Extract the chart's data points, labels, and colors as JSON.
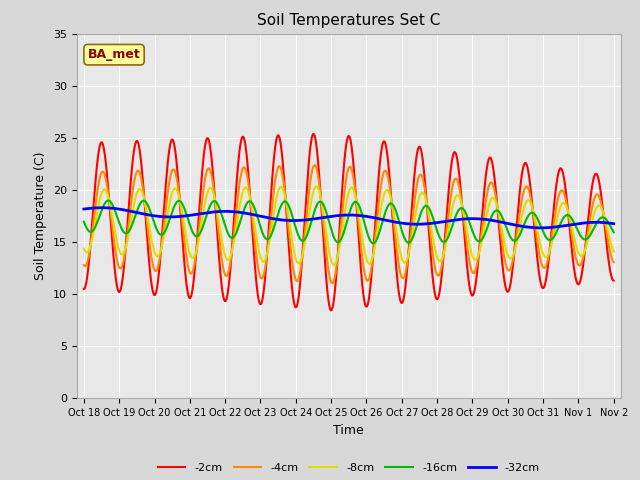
{
  "title": "Soil Temperatures Set C",
  "xlabel": "Time",
  "ylabel": "Soil Temperature (C)",
  "ylim": [
    0,
    35
  ],
  "tick_labels": [
    "Oct 18",
    "Oct 19",
    "Oct 20",
    "Oct 21",
    "Oct 22",
    "Oct 23",
    "Oct 24",
    "Oct 25",
    "Oct 26",
    "Oct 27",
    "Oct 28",
    "Oct 29",
    "Oct 30",
    "Oct 31",
    "Nov 1",
    "Nov 2"
  ],
  "annotation_text": "BA_met",
  "annotation_color": "#8B0000",
  "annotation_bg": "#FFFF99",
  "annotation_edge": "#8B6914",
  "legend_labels": [
    "-2cm",
    "-4cm",
    "-8cm",
    "-16cm",
    "-32cm"
  ],
  "line_colors": [
    "#FF0000",
    "#FF8800",
    "#DDDD00",
    "#00BB00",
    "#0000FF"
  ],
  "line_widths": [
    1.5,
    1.5,
    1.5,
    1.5,
    2.0
  ],
  "fig_facecolor": "#D8D8D8",
  "ax_facecolor": "#E8E8E8",
  "grid_color": "#FFFFFF",
  "title_fontsize": 11,
  "tick_fontsize": 7,
  "label_fontsize": 9
}
